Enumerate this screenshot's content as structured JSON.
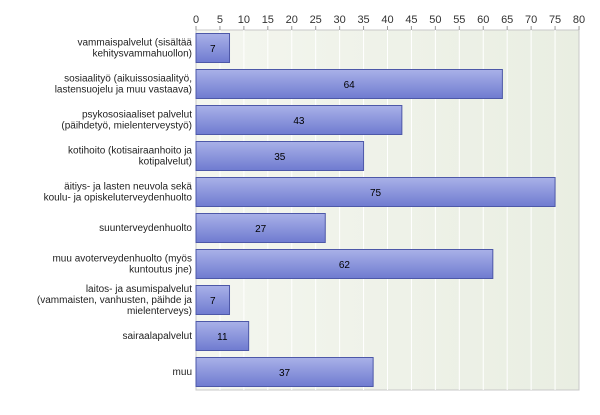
{
  "chart_data": {
    "type": "bar",
    "orientation": "horizontal",
    "categories": [
      [
        "vammaispalvelut (sisältää",
        "kehitysvammahuollon)"
      ],
      [
        "sosiaalityö (aikuissosiaalityö,",
        "lastensuojelu ja muu vastaava)"
      ],
      [
        "psykososiaaliset palvelut",
        "(päihdetyö, mielenterveystyö)"
      ],
      [
        "kotihoito (kotisairaanhoito ja",
        "kotipalvelut)"
      ],
      [
        "äitiys- ja lasten neuvola sekä",
        "koulu- ja opiskeluterveydenhuolto"
      ],
      [
        "suunterveydenhuolto"
      ],
      [
        "muu avoterveydenhuolto (myös",
        "kuntoutus jne)"
      ],
      [
        "laitos- ja asumispalvelut",
        "(vammaisten, vanhusten, päihde ja",
        "mielenterveys)"
      ],
      [
        "sairaalapalvelut"
      ],
      [
        "muu"
      ]
    ],
    "values": [
      7,
      64,
      43,
      35,
      75,
      27,
      62,
      7,
      11,
      37
    ],
    "xlim": [
      0,
      80
    ],
    "x_ticks": [
      0,
      5,
      10,
      15,
      20,
      25,
      30,
      35,
      40,
      45,
      50,
      55,
      60,
      65,
      70,
      75,
      80
    ],
    "x_axis_position": "top",
    "grid": true,
    "data_labels": true,
    "colors": {
      "bar_fill_light": "#a9b1e8",
      "bar_fill_dark": "#6f7bd0",
      "bar_stroke": "#4d58a8",
      "plot_bg": "#f4f6ef",
      "plot_bg_alt": "#e9eee2",
      "grid": "#ffffff",
      "border": "#c8c8c8"
    }
  }
}
